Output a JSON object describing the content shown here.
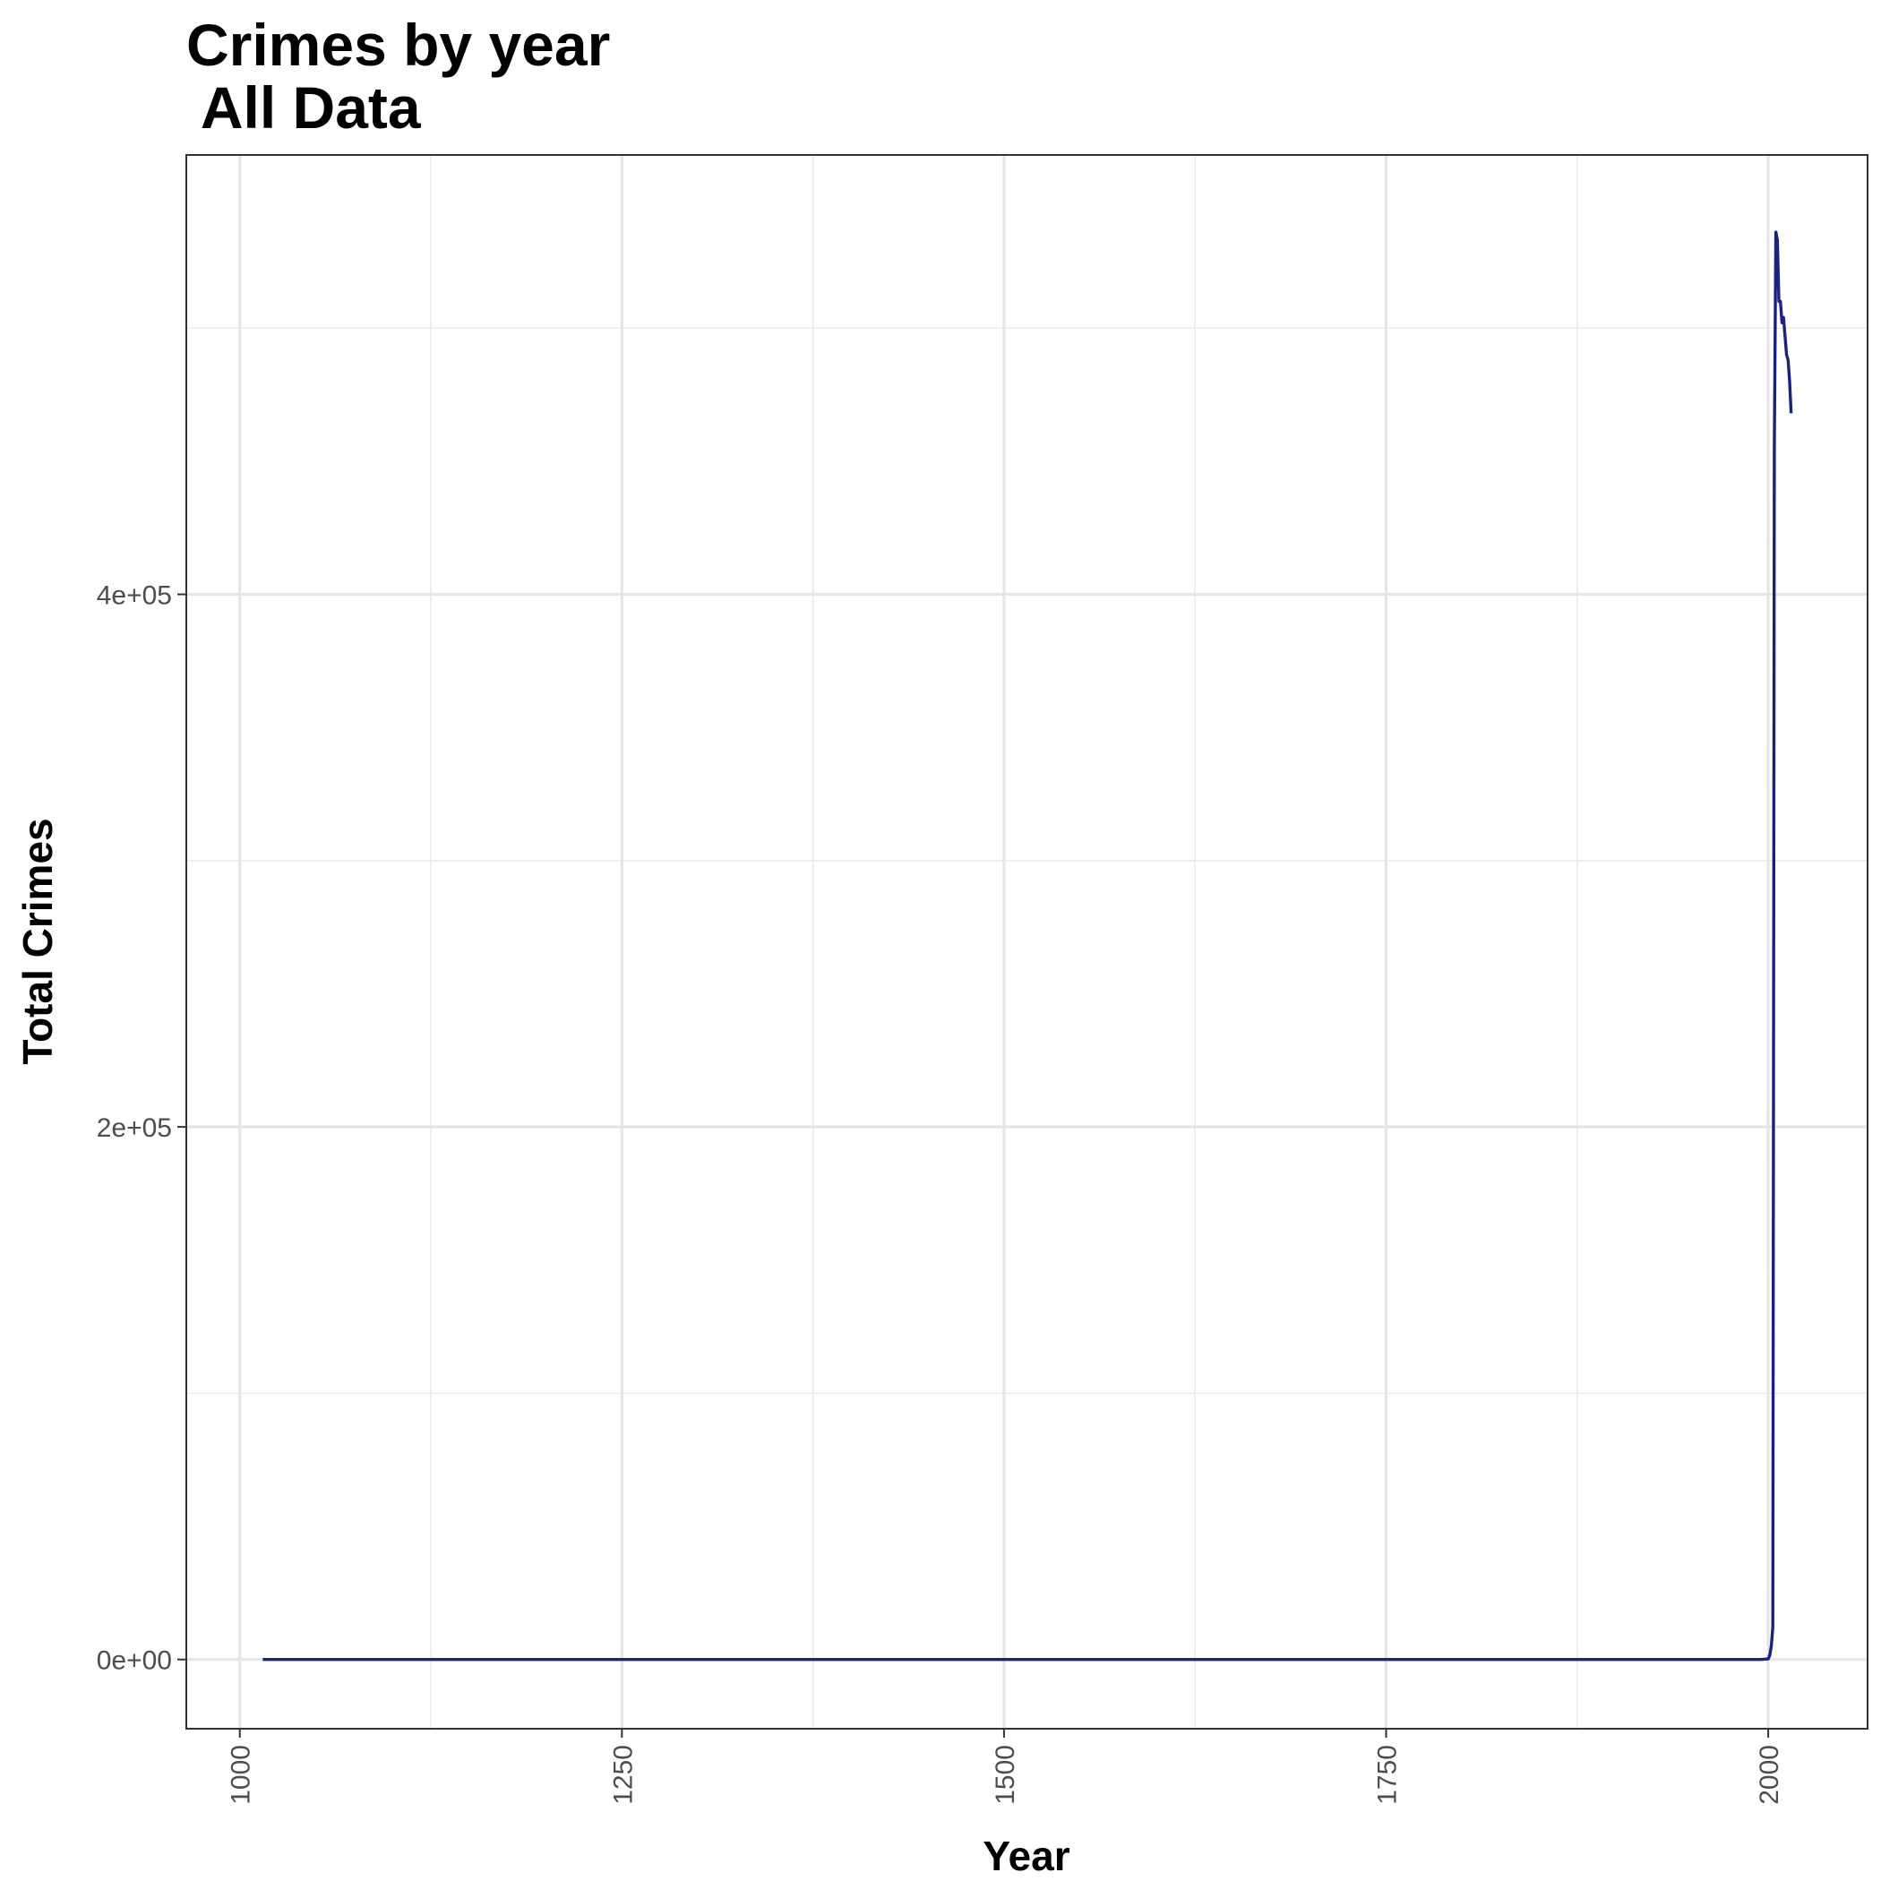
{
  "chart_data": {
    "type": "line",
    "title_lines": [
      "Crimes by year",
      " All Data"
    ],
    "xlabel": "Year",
    "ylabel": "Total Crimes",
    "xlim": [
      965,
      2065
    ],
    "ylim": [
      -26000,
      565000
    ],
    "x_ticks": [
      1000,
      1250,
      1500,
      1750,
      2000
    ],
    "x_tick_labels": [
      "1000",
      "1250",
      "1500",
      "1750",
      "2000"
    ],
    "y_ticks": [
      0,
      200000,
      400000
    ],
    "y_tick_labels": [
      "0e+00",
      "2e+05",
      "4e+05"
    ],
    "grid": true,
    "line_color": "#1a237e",
    "series": [
      {
        "x": [
          1015,
          1100,
          1200,
          1300,
          1400,
          1500,
          1600,
          1700,
          1800,
          1900,
          1995,
          2000,
          2001,
          2002,
          2003,
          2004,
          2005,
          2006,
          2007,
          2008,
          2009,
          2010,
          2011,
          2012,
          2013,
          2014,
          2015
        ],
        "y": [
          0,
          0,
          0,
          0,
          0,
          0,
          0,
          0,
          0,
          0,
          0,
          200,
          1500,
          5000,
          12000,
          455000,
          536000,
          533000,
          510000,
          510000,
          502000,
          504000,
          497000,
          490000,
          488000,
          480000,
          468000
        ]
      }
    ]
  }
}
